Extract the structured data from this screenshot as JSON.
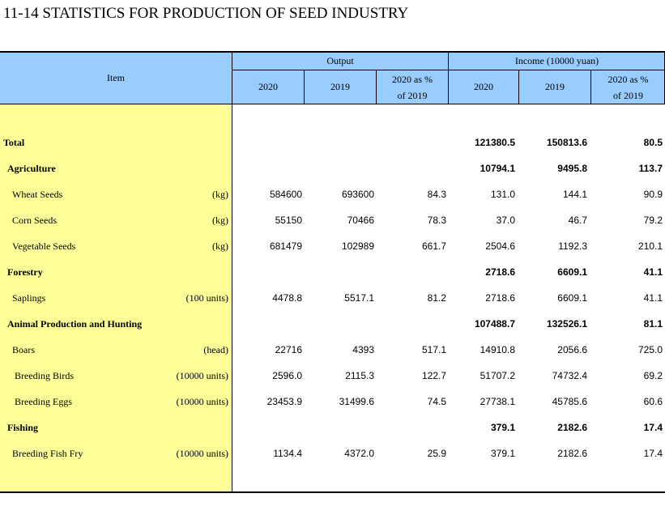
{
  "title": "11-14  STATISTICS FOR PRODUCTION OF SEED INDUSTRY",
  "header": {
    "item": "Item",
    "output": "Output",
    "income": "Income (10000 yuan)",
    "y2020": "2020",
    "y2019": "2019",
    "pct_line1": "2020 as %",
    "pct_line2": "of 2019"
  },
  "rows": [
    {
      "label": "Total",
      "unit": "",
      "out2020": "",
      "out2019": "",
      "outpct": "",
      "inc2020": "121380.5",
      "inc2019": "150813.6",
      "incpct": "80.5"
    },
    {
      "label": "Agriculture",
      "unit": "",
      "out2020": "",
      "out2019": "",
      "outpct": "",
      "inc2020": "10794.1",
      "inc2019": "9495.8",
      "incpct": "113.7"
    },
    {
      "label": "Wheat Seeds",
      "unit": "(kg)",
      "out2020": "584600",
      "out2019": "693600",
      "outpct": "84.3",
      "inc2020": "131.0",
      "inc2019": "144.1",
      "incpct": "90.9"
    },
    {
      "label": "Corn Seeds",
      "unit": "(kg)",
      "out2020": "55150",
      "out2019": "70466",
      "outpct": "78.3",
      "inc2020": "37.0",
      "inc2019": "46.7",
      "incpct": "79.2"
    },
    {
      "label": "Vegetable Seeds",
      "unit": "(kg)",
      "out2020": "681479",
      "out2019": "102989",
      "outpct": "661.7",
      "inc2020": "2504.6",
      "inc2019": "1192.3",
      "incpct": "210.1"
    },
    {
      "label": "Forestry",
      "unit": "",
      "out2020": "",
      "out2019": "",
      "outpct": "",
      "inc2020": "2718.6",
      "inc2019": "6609.1",
      "incpct": "41.1"
    },
    {
      "label": "Saplings",
      "unit": "(100 units)",
      "out2020": "4478.8",
      "out2019": "5517.1",
      "outpct": "81.2",
      "inc2020": "2718.6",
      "inc2019": "6609.1",
      "incpct": "41.1"
    },
    {
      "label": "Animal Production and Hunting",
      "unit": "",
      "out2020": "",
      "out2019": "",
      "outpct": "",
      "inc2020": "107488.7",
      "inc2019": "132526.1",
      "incpct": "81.1"
    },
    {
      "label": "Boars",
      "unit": "(head)",
      "out2020": "22716",
      "out2019": "4393",
      "outpct": "517.1",
      "inc2020": "14910.8",
      "inc2019": "2056.6",
      "incpct": "725.0"
    },
    {
      "label": "Breeding Birds",
      "unit": "(10000 units)",
      "out2020": "2596.0",
      "out2019": "2115.3",
      "outpct": "122.7",
      "inc2020": "51707.2",
      "inc2019": "74732.4",
      "incpct": "69.2"
    },
    {
      "label": "Breeding Eggs",
      "unit": "(10000 units)",
      "out2020": "23453.9",
      "out2019": "31499.6",
      "outpct": "74.5",
      "inc2020": "27738.1",
      "inc2019": "45785.6",
      "incpct": "60.6"
    },
    {
      "label": "Fishing",
      "unit": "",
      "out2020": "",
      "out2019": "",
      "outpct": "",
      "inc2020": "379.1",
      "inc2019": "2182.6",
      "incpct": "17.4"
    },
    {
      "label": "Breeding Fish Fry",
      "unit": "(10000 units)",
      "out2020": "1134.4",
      "out2019": "4372.0",
      "outpct": "25.9",
      "inc2020": "379.1",
      "inc2019": "2182.6",
      "incpct": "17.4"
    }
  ]
}
